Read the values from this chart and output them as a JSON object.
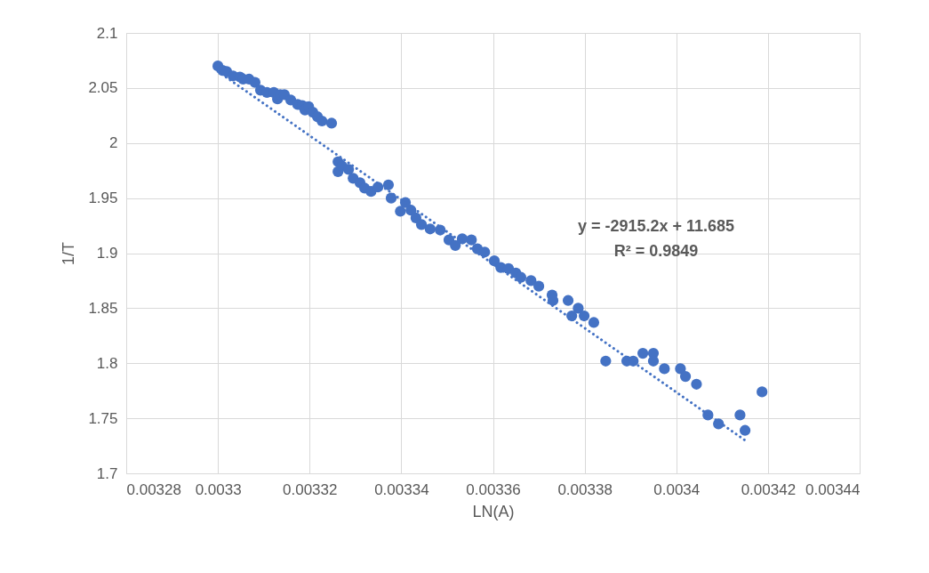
{
  "chart_data": {
    "type": "scatter",
    "xlabel": "LN(A)",
    "ylabel": "1/T",
    "xlim": [
      0.00328,
      0.00344
    ],
    "ylim": [
      1.7,
      2.1
    ],
    "xticks": [
      0.00328,
      0.0033,
      0.00332,
      0.00334,
      0.00336,
      0.00338,
      0.0034,
      0.00342,
      0.00344
    ],
    "yticks": [
      1.7,
      1.75,
      1.8,
      1.85,
      1.9,
      1.95,
      2,
      2.05,
      2.1
    ],
    "grid": true,
    "annotations": [
      "y = -2915.2x + 11.685",
      "R² = 0.9849"
    ],
    "series": [
      {
        "color": "#4472c4",
        "marker": "circle",
        "x": [
          0.0033,
          0.003301,
          0.0033019,
          0.0033033,
          0.0033048,
          0.0033055,
          0.0033068,
          0.0033081,
          0.0033093,
          0.0033107,
          0.0033122,
          0.003313,
          0.0033136,
          0.0033145,
          0.0033159,
          0.0033174,
          0.0033184,
          0.003319,
          0.0033198,
          0.0033207,
          0.0033217,
          0.0033227,
          0.0033248,
          0.0033262,
          0.0033262,
          0.0033271,
          0.0033285,
          0.0033295,
          0.003331,
          0.003332,
          0.0033334,
          0.0033349,
          0.0033372,
          0.0033378,
          0.0033398,
          0.0033409,
          0.0033421,
          0.0033432,
          0.0033444,
          0.0033463,
          0.0033485,
          0.0033504,
          0.0033518,
          0.0033533,
          0.0033553,
          0.0033566,
          0.0033582,
          0.0033603,
          0.0033617,
          0.0033634,
          0.003365,
          0.0033661,
          0.0033683,
          0.00337,
          0.0033729,
          0.0033731,
          0.0033764,
          0.0033772,
          0.0033786,
          0.0033799,
          0.003382,
          0.0033846,
          0.0033892,
          0.0033906,
          0.0033927,
          0.003395,
          0.003395,
          0.0033974,
          0.0034009,
          0.003402,
          0.0034044,
          0.0034069,
          0.0034092,
          0.0034139,
          0.003415,
          0.0034187
        ],
        "values": [
          2.07,
          2.066,
          2.065,
          2.061,
          2.06,
          2.058,
          2.058,
          2.055,
          2.048,
          2.046,
          2.046,
          2.04,
          2.044,
          2.044,
          2.039,
          2.035,
          2.034,
          2.03,
          2.033,
          2.028,
          2.024,
          2.02,
          2.018,
          1.983,
          1.974,
          1.979,
          1.976,
          1.968,
          1.964,
          1.959,
          1.956,
          1.96,
          1.962,
          1.95,
          1.938,
          1.946,
          1.939,
          1.932,
          1.926,
          1.922,
          1.921,
          1.912,
          1.907,
          1.913,
          1.912,
          1.904,
          1.901,
          1.893,
          1.887,
          1.886,
          1.882,
          1.878,
          1.875,
          1.87,
          1.862,
          1.857,
          1.857,
          1.843,
          1.85,
          1.843,
          1.837,
          1.802,
          1.802,
          1.802,
          1.809,
          1.809,
          1.802,
          1.795,
          1.795,
          1.788,
          1.781,
          1.753,
          1.745,
          1.753,
          1.739,
          1.774
        ]
      },
      {
        "type": "line",
        "color": "#4472c4",
        "line_style": "dotted",
        "x": [
          0.0033,
          0.003415
        ],
        "values": [
          2.065,
          1.73
        ]
      }
    ]
  }
}
